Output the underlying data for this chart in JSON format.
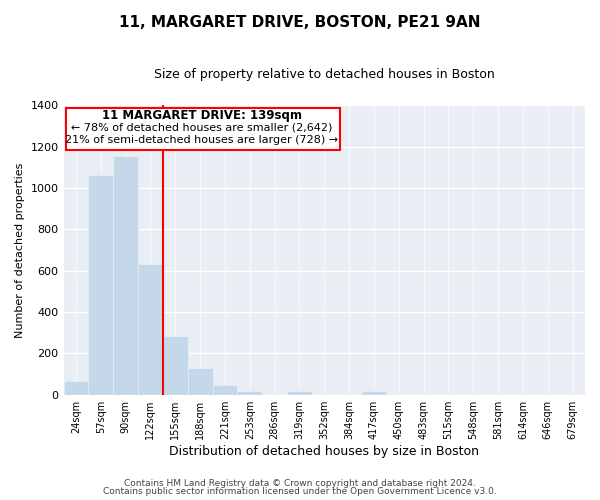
{
  "title": "11, MARGARET DRIVE, BOSTON, PE21 9AN",
  "subtitle": "Size of property relative to detached houses in Boston",
  "xlabel": "Distribution of detached houses by size in Boston",
  "ylabel": "Number of detached properties",
  "footer_line1": "Contains HM Land Registry data © Crown copyright and database right 2024.",
  "footer_line2": "Contains public sector information licensed under the Open Government Licence v3.0.",
  "bar_labels": [
    "24sqm",
    "57sqm",
    "90sqm",
    "122sqm",
    "155sqm",
    "188sqm",
    "221sqm",
    "253sqm",
    "286sqm",
    "319sqm",
    "352sqm",
    "384sqm",
    "417sqm",
    "450sqm",
    "483sqm",
    "515sqm",
    "548sqm",
    "581sqm",
    "614sqm",
    "646sqm",
    "679sqm"
  ],
  "bar_values": [
    65,
    1065,
    1155,
    630,
    285,
    130,
    48,
    20,
    0,
    20,
    0,
    0,
    18,
    0,
    0,
    0,
    0,
    0,
    0,
    0,
    0
  ],
  "bar_color": "#c5d8ea",
  "ylim": [
    0,
    1400
  ],
  "yticks": [
    0,
    200,
    400,
    600,
    800,
    1000,
    1200,
    1400
  ],
  "red_line_x": 3.5,
  "annotation_box_title": "11 MARGARET DRIVE: 139sqm",
  "annotation_line1": "← 78% of detached houses are smaller (2,642)",
  "annotation_line2": "21% of semi-detached houses are larger (728) →",
  "background_color": "#ffffff",
  "plot_bg_color": "#e8eef4"
}
